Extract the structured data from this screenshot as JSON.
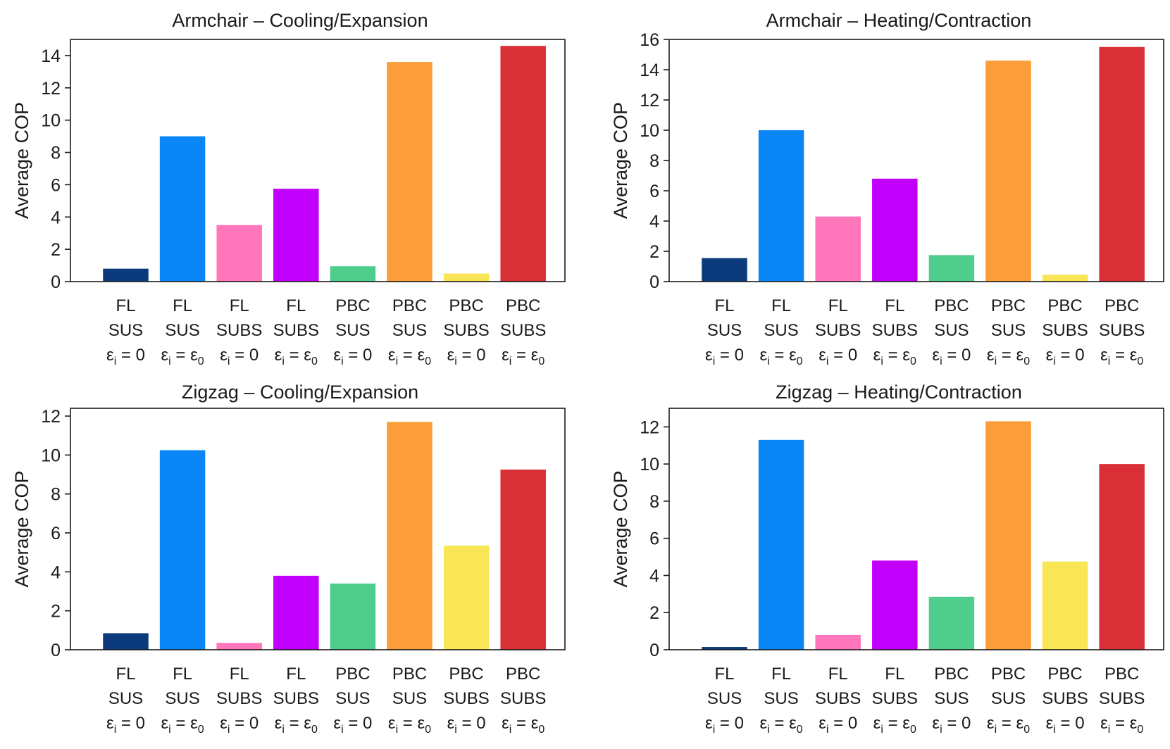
{
  "colors": [
    "#0b3b7d",
    "#0a86f7",
    "#ff76bb",
    "#c100fc",
    "#4fcd8c",
    "#fb9d39",
    "#f8e657",
    "#d92f36"
  ],
  "categories": [
    {
      "l1": "FL",
      "l2": "SUS",
      "eps": "ε",
      "eps_sub": "i",
      "eq": " = ",
      "rhs": "0"
    },
    {
      "l1": "FL",
      "l2": "SUS",
      "eps": "ε",
      "eps_sub": "i",
      "eq": " = ",
      "rhs": "ε",
      "rhs_sub": "0"
    },
    {
      "l1": "FL",
      "l2": "SUBS",
      "eps": "ε",
      "eps_sub": "i",
      "eq": " = ",
      "rhs": "0"
    },
    {
      "l1": "FL",
      "l2": "SUBS",
      "eps": "ε",
      "eps_sub": "i",
      "eq": " = ",
      "rhs": "ε",
      "rhs_sub": "0"
    },
    {
      "l1": "PBC",
      "l2": "SUS",
      "eps": "ε",
      "eps_sub": "i",
      "eq": " = ",
      "rhs": "0"
    },
    {
      "l1": "PBC",
      "l2": "SUS",
      "eps": "ε",
      "eps_sub": "i",
      "eq": " = ",
      "rhs": "ε",
      "rhs_sub": "0"
    },
    {
      "l1": "PBC",
      "l2": "SUBS",
      "eps": "ε",
      "eps_sub": "i",
      "eq": " = ",
      "rhs": "0"
    },
    {
      "l1": "PBC",
      "l2": "SUBS",
      "eps": "ε",
      "eps_sub": "i",
      "eq": " = ",
      "rhs": "ε",
      "rhs_sub": "0"
    }
  ],
  "chart_data": [
    {
      "type": "bar",
      "title": "Armchair – Cooling/Expansion",
      "ylabel": "Average COP",
      "ylim": [
        0,
        15
      ],
      "yticks": [
        0,
        2,
        4,
        6,
        8,
        10,
        12,
        14
      ],
      "values": [
        0.8,
        9.0,
        3.5,
        5.75,
        0.95,
        13.6,
        0.5,
        14.6
      ]
    },
    {
      "type": "bar",
      "title": "Armchair – Heating/Contraction",
      "ylabel": "Average COP",
      "ylim": [
        0,
        16
      ],
      "yticks": [
        0,
        2,
        4,
        6,
        8,
        10,
        12,
        14,
        16
      ],
      "values": [
        1.55,
        10.0,
        4.3,
        6.8,
        1.75,
        14.6,
        0.45,
        15.5
      ]
    },
    {
      "type": "bar",
      "title": "Zigzag – Cooling/Expansion",
      "ylabel": "Average COP",
      "ylim": [
        0,
        12.4
      ],
      "yticks": [
        0,
        2,
        4,
        6,
        8,
        10,
        12
      ],
      "values": [
        0.85,
        10.25,
        0.35,
        3.8,
        3.4,
        11.7,
        5.35,
        9.25
      ]
    },
    {
      "type": "bar",
      "title": "Zigzag – Heating/Contraction",
      "ylabel": "Average COP",
      "ylim": [
        0,
        13.0
      ],
      "yticks": [
        0,
        2,
        4,
        6,
        8,
        10,
        12
      ],
      "values": [
        0.15,
        11.3,
        0.8,
        4.8,
        2.85,
        12.3,
        4.75,
        10.0
      ]
    }
  ]
}
